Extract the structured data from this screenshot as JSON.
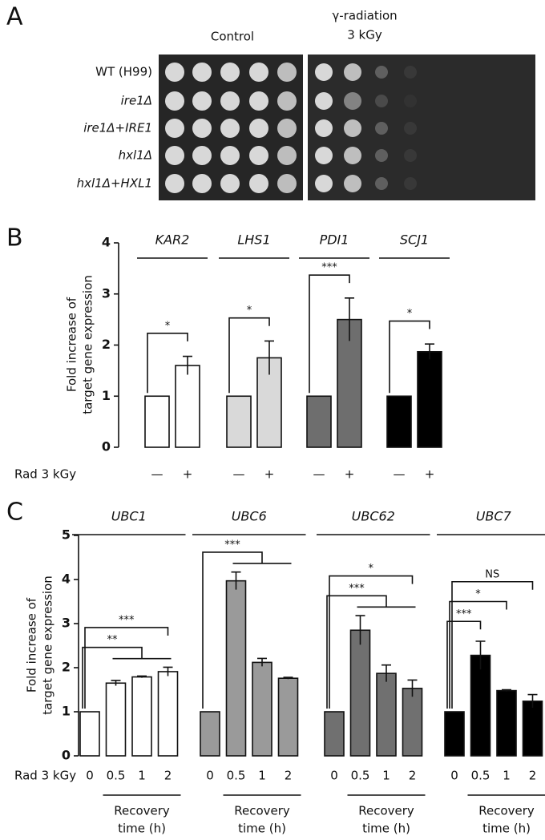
{
  "panel_a": {
    "panel": "A",
    "column_headers": [
      "Control",
      "γ-radiation",
      "3 kGy"
    ],
    "strains": [
      "WT (H99)",
      "ire1Δ",
      "ire1Δ+IRE1",
      "hxl1Δ",
      "hxl1Δ+HXL1"
    ]
  },
  "chart_data": [
    {
      "type": "bar",
      "panel": "B",
      "ylabel": [
        "Fold increase of",
        "target gene expression"
      ],
      "row_label": "Rad 3 kGy",
      "categories": [
        "—",
        "+"
      ],
      "ylim": [
        0,
        4
      ],
      "yticks": [
        0,
        1,
        2,
        3,
        4
      ],
      "series": [
        {
          "name": "KAR2",
          "color": "#ffffff",
          "values": [
            1,
            1.6
          ],
          "errors": [
            null,
            0.18
          ],
          "significance": [
            "*"
          ]
        },
        {
          "name": "LHS1",
          "color": "#d9d9d9",
          "values": [
            1,
            1.75
          ],
          "errors": [
            null,
            0.33
          ],
          "significance": [
            "*"
          ]
        },
        {
          "name": "PDI1",
          "color": "#6e6e6e",
          "values": [
            1,
            2.5
          ],
          "errors": [
            null,
            0.42
          ],
          "significance": [
            "***"
          ]
        },
        {
          "name": "SCJ1",
          "color": "#000000",
          "values": [
            1,
            1.87
          ],
          "errors": [
            null,
            0.15
          ],
          "significance": [
            "*"
          ]
        }
      ]
    },
    {
      "type": "bar",
      "panel": "C",
      "ylabel": [
        "Fold increase of",
        "target gene expression"
      ],
      "row_label": "Rad 3 kGy",
      "categories": [
        "0",
        "0.5",
        "1",
        "2"
      ],
      "group_label": [
        "Recovery",
        "time (h)"
      ],
      "ylim": [
        0,
        5
      ],
      "yticks": [
        0,
        1,
        2,
        3,
        4,
        5
      ],
      "series": [
        {
          "name": "UBC1",
          "color": "#ffffff",
          "values": [
            1,
            1.65,
            1.79,
            1.91
          ],
          "errors": [
            null,
            0.06,
            0.02,
            0.1
          ],
          "significance": [
            "**",
            "***"
          ]
        },
        {
          "name": "UBC6",
          "color": "#9a9a9a",
          "values": [
            1,
            3.97,
            2.12,
            1.76
          ],
          "errors": [
            null,
            0.2,
            0.09,
            0.02
          ],
          "significance": [
            "***"
          ]
        },
        {
          "name": "UBC62",
          "color": "#707070",
          "values": [
            1,
            2.85,
            1.87,
            1.53
          ],
          "errors": [
            null,
            0.33,
            0.19,
            0.19
          ],
          "significance": [
            "***",
            "*"
          ]
        },
        {
          "name": "UBC7",
          "color": "#000000",
          "values": [
            1,
            2.28,
            1.48,
            1.24
          ],
          "errors": [
            null,
            0.32,
            0.02,
            0.15
          ],
          "significance": [
            "***",
            "*",
            "NS"
          ]
        }
      ]
    }
  ]
}
